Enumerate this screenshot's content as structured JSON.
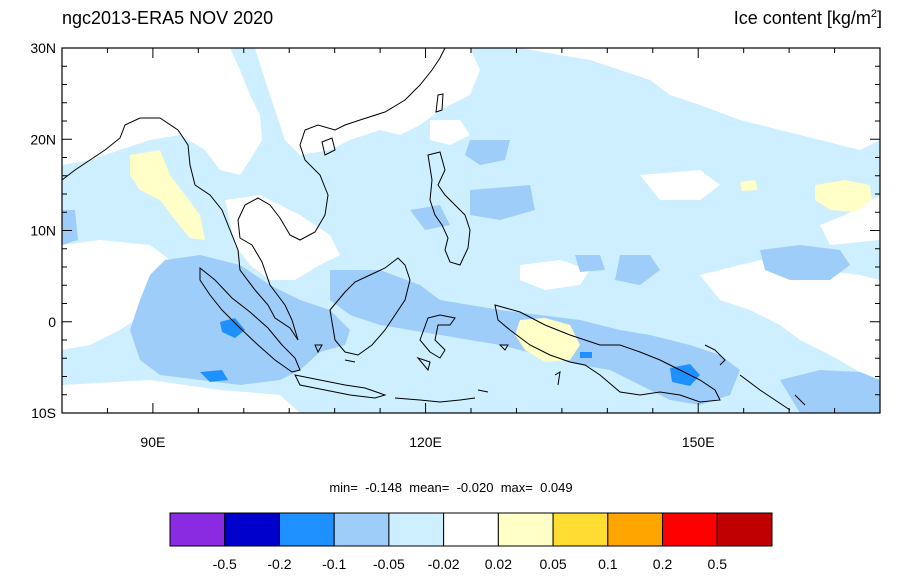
{
  "title": {
    "left": "ngc2013-ERA5 NOV 2020",
    "right_text": "Ice content  [kg/m",
    "right_sup": "2",
    "right_close": "]"
  },
  "map": {
    "lon_range": [
      80,
      170
    ],
    "lat_range": [
      -10,
      30
    ],
    "lat_ticks": [
      {
        "value": 30,
        "label": "30N"
      },
      {
        "value": 20,
        "label": "20N"
      },
      {
        "value": 10,
        "label": "10N"
      },
      {
        "value": 0,
        "label": "0"
      },
      {
        "value": -10,
        "label": "10S"
      }
    ],
    "lon_ticks": [
      {
        "value": 90,
        "label": "90E"
      },
      {
        "value": 120,
        "label": "120E"
      },
      {
        "value": 150,
        "label": "150E"
      }
    ]
  },
  "stats": {
    "min_label": "min=",
    "min": "-0.148",
    "mean_label": "mean=",
    "mean": "-0.020",
    "max_label": "max=",
    "max": "0.049"
  },
  "colorbar": {
    "colors": [
      "#8a2be2",
      "#0000cd",
      "#1e90ff",
      "#9fcdfa",
      "#cdefff",
      "#ffffff",
      "#ffffc8",
      "#ffdd33",
      "#ffa500",
      "#ff0000",
      "#c00000"
    ],
    "labels": [
      "-0.5",
      "-0.2",
      "-0.1",
      "-0.05",
      "-0.02",
      "0.02",
      "0.05",
      "0.1",
      "0.2",
      "0.5"
    ]
  },
  "fill_colors": {
    "very_light_blue": "#cdefff",
    "light_blue": "#9fcdfa",
    "mid_blue": "#1e90ff",
    "light_yellow": "#ffffc8",
    "yellow": "#ffdd33"
  }
}
